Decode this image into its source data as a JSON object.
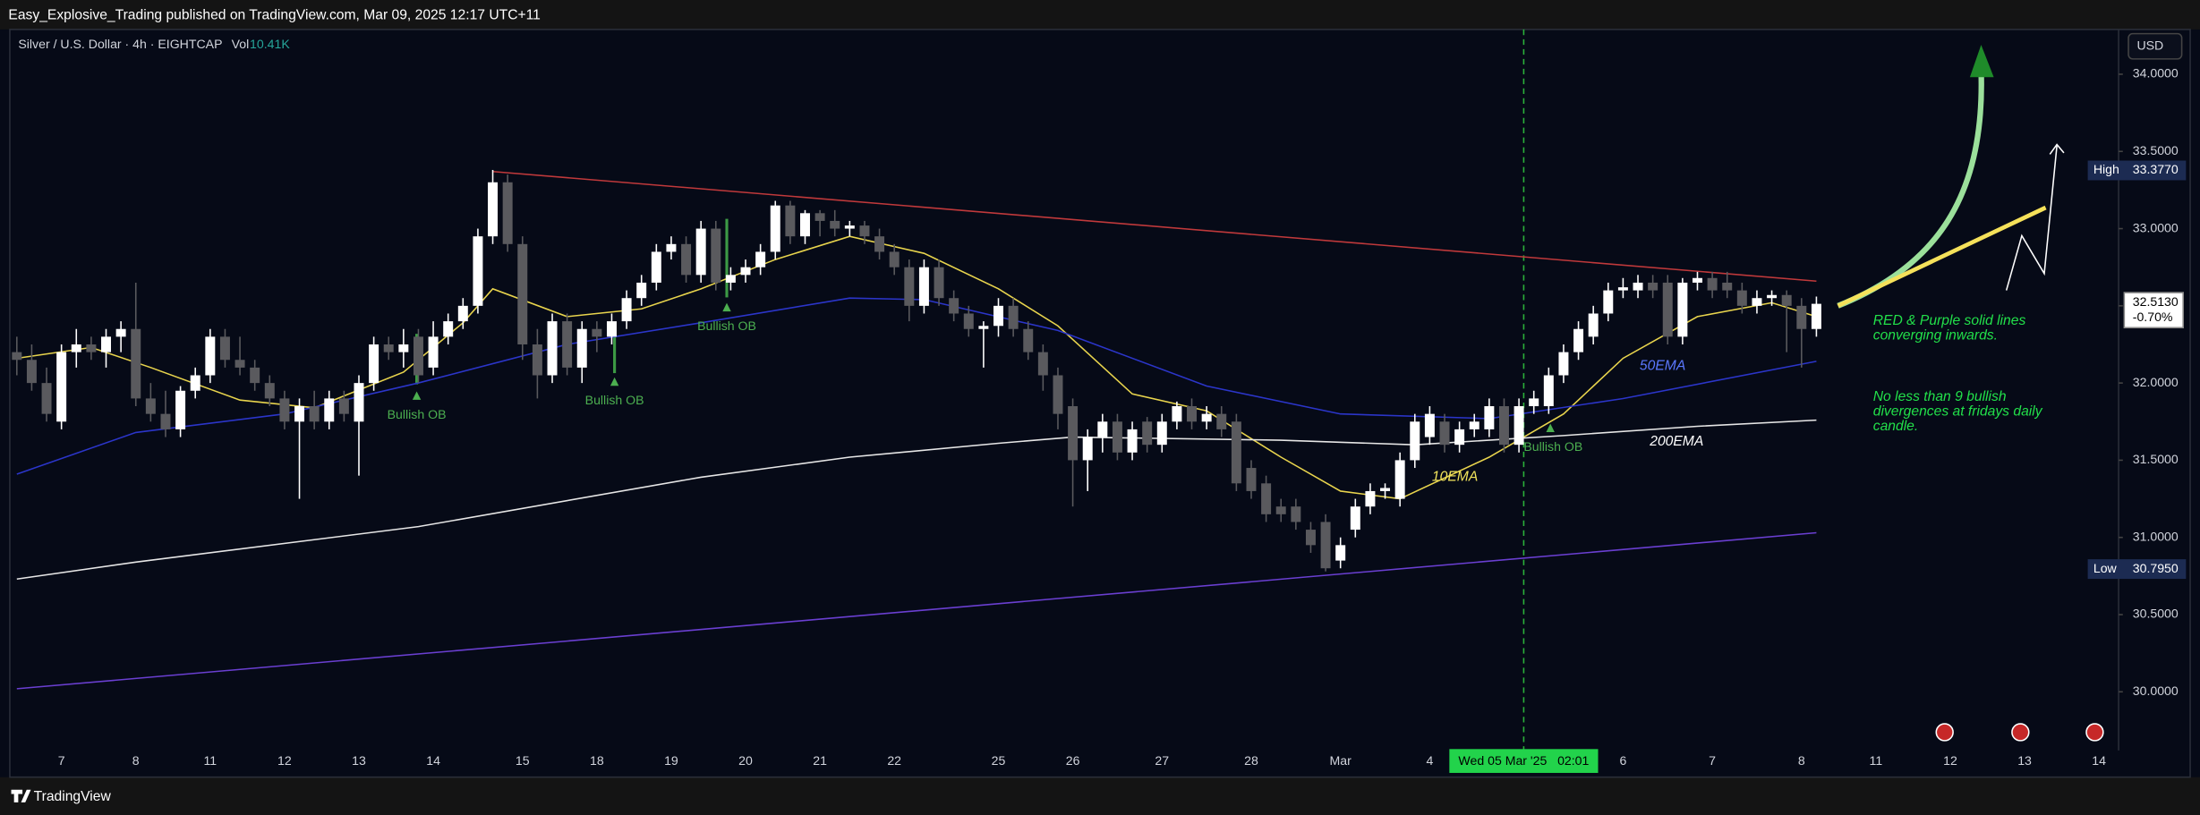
{
  "header": {
    "publisher": "Easy_Explosive_Trading published on TradingView.com, Mar 09, 2025 12:17 UTC+11",
    "symbol": "Silver / U.S. Dollar · 4h · EIGHTCAP",
    "volume_label": "Vol",
    "volume": "10.41K",
    "currency": "USD",
    "brand": "TradingView"
  },
  "chart_data": {
    "type": "candlestick",
    "up_color": "#ffffff",
    "down_color": "#5a5a5e",
    "ylim": [
      29.62,
      34.29
    ],
    "yticks": [
      {
        "value": 30,
        "label": "30.0000"
      },
      {
        "value": 30.5,
        "label": "30.5000"
      },
      {
        "value": 31,
        "label": "31.0000"
      },
      {
        "value": 31.5,
        "label": "31.5000"
      },
      {
        "value": 32,
        "label": "32.0000"
      },
      {
        "value": 32.5,
        "label": "32.5000"
      },
      {
        "value": 33,
        "label": "33.0000"
      },
      {
        "value": 33.5,
        "label": "33.5000"
      },
      {
        "value": 34,
        "label": "34.0000"
      }
    ],
    "grid": false,
    "categories": [
      null,
      null,
      null,
      "7",
      null,
      null,
      null,
      null,
      "8",
      null,
      null,
      null,
      null,
      "11",
      null,
      null,
      null,
      null,
      "12",
      null,
      null,
      null,
      null,
      "13",
      null,
      null,
      null,
      null,
      "14",
      null,
      null,
      null,
      null,
      null,
      "15",
      null,
      null,
      null,
      null,
      "18",
      null,
      null,
      null,
      null,
      "19",
      null,
      null,
      null,
      null,
      "20",
      null,
      null,
      null,
      null,
      "21",
      null,
      null,
      null,
      null,
      "22",
      null,
      null,
      null,
      null,
      null,
      null,
      "25",
      null,
      null,
      null,
      null,
      "26",
      null,
      null,
      null,
      null,
      null,
      "27",
      null,
      null,
      null,
      null,
      null,
      "28",
      null,
      null,
      null,
      null,
      null,
      "Mar",
      null,
      null,
      null,
      null,
      null,
      "4",
      null,
      null,
      null,
      null,
      null,
      null,
      null,
      null,
      null,
      null,
      null,
      null,
      "6",
      null,
      null,
      null,
      null,
      null,
      "7",
      null,
      null,
      null,
      null,
      null,
      "8",
      null,
      null,
      null,
      null,
      "11",
      null,
      null,
      null,
      null,
      "12",
      null,
      null,
      null,
      null,
      "13",
      null,
      null,
      null,
      null,
      "14",
      null
    ],
    "ohlc": [
      [
        32.2,
        32.3,
        32.05,
        32.15
      ],
      [
        32.15,
        32.25,
        31.95,
        32.0
      ],
      [
        32.0,
        32.1,
        31.75,
        31.8
      ],
      [
        31.75,
        32.25,
        31.7,
        32.2
      ],
      [
        32.2,
        32.35,
        32.1,
        32.25
      ],
      [
        32.25,
        32.3,
        32.15,
        32.2
      ],
      [
        32.2,
        32.35,
        32.1,
        32.3
      ],
      [
        32.3,
        32.4,
        32.2,
        32.35
      ],
      [
        32.35,
        32.65,
        31.85,
        31.9
      ],
      [
        31.9,
        32.0,
        31.75,
        31.8
      ],
      [
        31.8,
        31.95,
        31.65,
        31.7
      ],
      [
        31.7,
        31.98,
        31.65,
        31.95
      ],
      [
        31.95,
        32.1,
        31.9,
        32.05
      ],
      [
        32.05,
        32.35,
        32.0,
        32.3
      ],
      [
        32.3,
        32.35,
        32.1,
        32.15
      ],
      [
        32.15,
        32.3,
        32.05,
        32.1
      ],
      [
        32.1,
        32.15,
        31.95,
        32.0
      ],
      [
        32.0,
        32.05,
        31.85,
        31.9
      ],
      [
        31.9,
        31.95,
        31.7,
        31.75
      ],
      [
        31.75,
        31.9,
        31.25,
        31.85
      ],
      [
        31.85,
        31.95,
        31.7,
        31.75
      ],
      [
        31.75,
        31.95,
        31.7,
        31.9
      ],
      [
        31.9,
        31.95,
        31.75,
        31.8
      ],
      [
        31.75,
        32.05,
        31.4,
        32.0
      ],
      [
        32.0,
        32.3,
        31.95,
        32.25
      ],
      [
        32.25,
        32.3,
        32.15,
        32.2
      ],
      [
        32.2,
        32.35,
        32.1,
        32.25
      ],
      [
        32.3,
        32.35,
        32.0,
        32.05
      ],
      [
        32.1,
        32.4,
        32.05,
        32.3
      ],
      [
        32.3,
        32.45,
        32.25,
        32.4
      ],
      [
        32.4,
        32.55,
        32.35,
        32.5
      ],
      [
        32.5,
        33.0,
        32.45,
        32.95
      ],
      [
        32.95,
        33.38,
        32.9,
        33.3
      ],
      [
        33.3,
        33.35,
        32.85,
        32.9
      ],
      [
        32.9,
        32.95,
        32.15,
        32.25
      ],
      [
        32.25,
        32.35,
        31.9,
        32.05
      ],
      [
        32.05,
        32.45,
        32.0,
        32.4
      ],
      [
        32.4,
        32.45,
        32.05,
        32.1
      ],
      [
        32.1,
        32.4,
        32.0,
        32.35
      ],
      [
        32.35,
        32.4,
        32.2,
        32.3
      ],
      [
        32.3,
        32.45,
        32.25,
        32.4
      ],
      [
        32.4,
        32.6,
        32.35,
        32.55
      ],
      [
        32.55,
        32.7,
        32.5,
        32.65
      ],
      [
        32.65,
        32.9,
        32.6,
        32.85
      ],
      [
        32.85,
        32.95,
        32.8,
        32.9
      ],
      [
        32.9,
        32.95,
        32.65,
        32.7
      ],
      [
        32.7,
        33.05,
        32.65,
        33.0
      ],
      [
        33.0,
        33.05,
        32.6,
        32.65
      ],
      [
        32.65,
        32.75,
        32.6,
        32.7
      ],
      [
        32.7,
        32.8,
        32.65,
        32.75
      ],
      [
        32.75,
        32.9,
        32.7,
        32.85
      ],
      [
        32.85,
        33.18,
        32.8,
        33.15
      ],
      [
        33.15,
        33.18,
        32.9,
        32.95
      ],
      [
        32.95,
        33.12,
        32.9,
        33.1
      ],
      [
        33.1,
        33.12,
        32.95,
        33.05
      ],
      [
        33.05,
        33.12,
        32.95,
        33.0
      ],
      [
        33.0,
        33.05,
        32.95,
        33.02
      ],
      [
        33.02,
        33.05,
        32.9,
        32.95
      ],
      [
        32.95,
        33.0,
        32.8,
        32.85
      ],
      [
        32.85,
        32.9,
        32.7,
        32.75
      ],
      [
        32.75,
        32.8,
        32.4,
        32.5
      ],
      [
        32.5,
        32.8,
        32.45,
        32.75
      ],
      [
        32.75,
        32.8,
        32.5,
        32.55
      ],
      [
        32.55,
        32.6,
        32.4,
        32.45
      ],
      [
        32.45,
        32.5,
        32.3,
        32.35
      ],
      [
        32.35,
        32.4,
        32.1,
        32.37
      ],
      [
        32.37,
        32.55,
        32.3,
        32.5
      ],
      [
        32.5,
        32.55,
        32.3,
        32.35
      ],
      [
        32.35,
        32.4,
        32.15,
        32.2
      ],
      [
        32.2,
        32.25,
        31.95,
        32.05
      ],
      [
        32.05,
        32.1,
        31.7,
        31.8
      ],
      [
        31.85,
        31.9,
        31.2,
        31.5
      ],
      [
        31.5,
        31.7,
        31.3,
        31.65
      ],
      [
        31.65,
        31.8,
        31.55,
        31.75
      ],
      [
        31.75,
        31.8,
        31.5,
        31.55
      ],
      [
        31.55,
        31.75,
        31.5,
        31.7
      ],
      [
        31.75,
        31.78,
        31.55,
        31.6
      ],
      [
        31.6,
        31.8,
        31.55,
        31.75
      ],
      [
        31.75,
        31.88,
        31.7,
        31.85
      ],
      [
        31.85,
        31.9,
        31.7,
        31.75
      ],
      [
        31.75,
        31.85,
        31.7,
        31.8
      ],
      [
        31.8,
        31.85,
        31.65,
        31.7
      ],
      [
        31.75,
        31.8,
        31.3,
        31.35
      ],
      [
        31.45,
        31.5,
        31.25,
        31.3
      ],
      [
        31.35,
        31.4,
        31.1,
        31.15
      ],
      [
        31.2,
        31.25,
        31.1,
        31.15
      ],
      [
        31.2,
        31.25,
        31.05,
        31.1
      ],
      [
        31.05,
        31.1,
        30.9,
        30.95
      ],
      [
        31.1,
        31.15,
        30.78,
        30.8
      ],
      [
        30.85,
        31.0,
        30.8,
        30.95
      ],
      [
        31.05,
        31.25,
        31.0,
        31.2
      ],
      [
        31.2,
        31.35,
        31.15,
        31.3
      ],
      [
        31.3,
        31.35,
        31.25,
        31.32
      ],
      [
        31.25,
        31.55,
        31.2,
        31.5
      ],
      [
        31.5,
        31.8,
        31.45,
        31.75
      ],
      [
        31.65,
        31.85,
        31.6,
        31.8
      ],
      [
        31.75,
        31.8,
        31.55,
        31.6
      ],
      [
        31.6,
        31.75,
        31.55,
        31.7
      ],
      [
        31.7,
        31.8,
        31.65,
        31.75
      ],
      [
        31.7,
        31.9,
        31.65,
        31.85
      ],
      [
        31.85,
        31.9,
        31.55,
        31.6
      ],
      [
        31.6,
        31.9,
        31.55,
        31.85
      ],
      [
        31.85,
        31.95,
        31.8,
        31.9
      ],
      [
        31.85,
        32.1,
        31.8,
        32.05
      ],
      [
        32.05,
        32.25,
        32.0,
        32.2
      ],
      [
        32.2,
        32.4,
        32.15,
        32.35
      ],
      [
        32.3,
        32.5,
        32.25,
        32.45
      ],
      [
        32.45,
        32.65,
        32.4,
        32.6
      ],
      [
        32.6,
        32.68,
        32.55,
        32.62
      ],
      [
        32.6,
        32.7,
        32.55,
        32.65
      ],
      [
        32.65,
        32.7,
        32.55,
        32.6
      ],
      [
        32.65,
        32.7,
        32.25,
        32.3
      ],
      [
        32.3,
        32.68,
        32.25,
        32.65
      ],
      [
        32.65,
        32.72,
        32.6,
        32.68
      ],
      [
        32.68,
        32.72,
        32.55,
        32.6
      ],
      [
        32.65,
        32.72,
        32.55,
        32.6
      ],
      [
        32.6,
        32.65,
        32.45,
        32.5
      ],
      [
        32.5,
        32.6,
        32.45,
        32.55
      ],
      [
        32.55,
        32.6,
        32.5,
        32.57
      ],
      [
        32.57,
        32.6,
        32.2,
        32.5
      ],
      [
        32.5,
        32.55,
        32.1,
        32.35
      ],
      [
        32.35,
        32.56,
        32.3,
        32.513
      ],
      null,
      null,
      null,
      null,
      null,
      null,
      null,
      null,
      null,
      null,
      null,
      null,
      null,
      null,
      null,
      null,
      null,
      null,
      null,
      null
    ],
    "series": [
      {
        "color": "#e8d44d",
        "x": [
          0,
          5,
          9,
          15,
          20,
          26,
          30,
          32,
          37,
          42,
          46,
          51,
          56,
          61,
          66,
          70,
          75,
          80,
          85,
          89,
          93,
          99,
          104,
          108,
          113,
          118,
          121
        ],
        "values": [
          32.16,
          32.23,
          32.1,
          31.89,
          31.84,
          32.07,
          32.39,
          32.61,
          32.43,
          32.48,
          32.61,
          32.8,
          32.95,
          32.84,
          32.61,
          32.37,
          31.93,
          31.82,
          31.52,
          31.3,
          31.25,
          31.52,
          31.8,
          32.16,
          32.43,
          32.52,
          32.43
        ]
      },
      {
        "color": "#2b35c9",
        "x": [
          0,
          8,
          18,
          27,
          37,
          46,
          56,
          61,
          70,
          80,
          89,
          99,
          108,
          121
        ],
        "values": [
          31.41,
          31.68,
          31.8,
          32.0,
          32.25,
          32.39,
          32.55,
          32.54,
          32.34,
          31.98,
          31.8,
          31.77,
          31.9,
          32.14
        ]
      },
      {
        "color": "#e6e6e6",
        "x": [
          0,
          8,
          27,
          46,
          56,
          66,
          71,
          85,
          94,
          104,
          113,
          121
        ],
        "values": [
          30.73,
          30.84,
          31.07,
          31.39,
          31.52,
          31.61,
          31.65,
          31.63,
          31.6,
          31.66,
          31.72,
          31.76
        ]
      }
    ],
    "trendlines": [
      {
        "color": "#c0393b",
        "x": [
          32,
          121
        ],
        "values": [
          33.37,
          32.66
        ]
      },
      {
        "color": "#6a3fd1",
        "x": [
          0,
          121
        ],
        "values": [
          30.02,
          31.03
        ]
      }
    ],
    "price_labels": [
      {
        "name": "High",
        "value": 33.377,
        "label": "33.3770"
      },
      {
        "name": "Low",
        "value": 30.795,
        "label": "30.7950"
      }
    ],
    "last_price": {
      "value": 32.513,
      "label": "32.5130",
      "change": "-0.70%"
    },
    "crosshair": "Wed 05 Mar '25   02:01",
    "annotations": [
      {
        "text": [
          "Bullish OB"
        ],
        "color": "#4caf50"
      },
      {
        "text": [
          "Bullish OB"
        ],
        "color": "#4caf50"
      },
      {
        "text": [
          "Bullish OB"
        ],
        "color": "#4caf50"
      },
      {
        "text": [
          "Bullish OB"
        ],
        "color": "#4caf50"
      },
      {
        "text": [
          "10EMA"
        ],
        "color": "#f2e45c"
      },
      {
        "text": [
          "50EMA"
        ],
        "color": "#5b78ff"
      },
      {
        "text": [
          "200EMA"
        ],
        "color": "#ffffff"
      },
      {
        "text": [
          "RED & Purple solid lines",
          "converging inwards."
        ],
        "color": "#22e04a"
      },
      {
        "text": [
          "No less than 9 bullish",
          "divergences at fridays daily",
          "candle."
        ],
        "color": "#22e04a"
      }
    ]
  }
}
